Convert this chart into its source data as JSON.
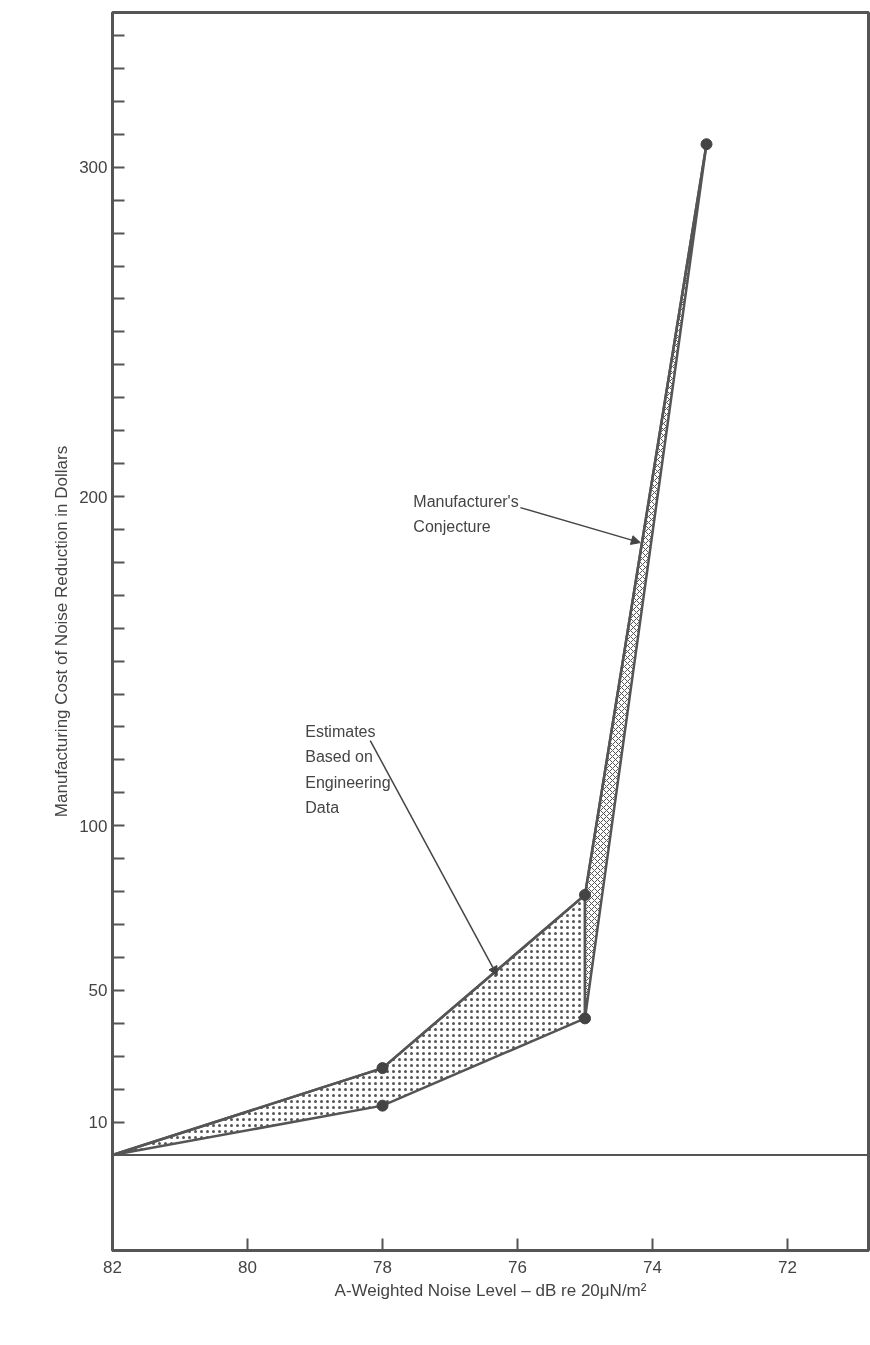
{
  "chart_data": {
    "type": "line",
    "xlabel": "A-Weighted Noise Level – dB re 20μN/m²",
    "ylabel": "Manufacturing Cost of Noise Reduction in Dollars",
    "xlim": [
      82,
      70.8
    ],
    "ylim": [
      -29,
      347
    ],
    "xticks": [
      82,
      80,
      78,
      76,
      74,
      72
    ],
    "yticks": [
      10,
      {
        "value": 20,
        "label": null
      },
      {
        "value": 30,
        "label": null
      },
      {
        "value": 40,
        "label": null
      },
      50,
      {
        "value": 60,
        "label": null
      },
      {
        "value": 70,
        "label": null
      },
      {
        "value": 80,
        "label": null
      },
      {
        "value": 90,
        "label": null
      },
      100,
      {
        "value": 110,
        "label": null
      },
      {
        "value": 120,
        "label": null
      },
      {
        "value": 130,
        "label": null
      },
      {
        "value": 140,
        "label": null
      },
      {
        "value": 150,
        "label": null
      },
      {
        "value": 160,
        "label": null
      },
      {
        "value": 170,
        "label": null
      },
      {
        "value": 180,
        "label": null
      },
      {
        "value": 190,
        "label": null
      },
      200,
      {
        "value": 210,
        "label": null
      },
      {
        "value": 220,
        "label": null
      },
      {
        "value": 230,
        "label": null
      },
      {
        "value": 240,
        "label": null
      },
      {
        "value": 250,
        "label": null
      },
      {
        "value": 260,
        "label": null
      },
      {
        "value": 270,
        "label": null
      },
      {
        "value": 280,
        "label": null
      },
      {
        "value": 290,
        "label": null
      },
      300,
      {
        "value": 310,
        "label": null
      },
      {
        "value": 320,
        "label": null
      },
      {
        "value": 330,
        "label": null
      },
      {
        "value": 340,
        "label": null
      }
    ],
    "grid": false,
    "series": [
      {
        "color": "#555555",
        "x": [
          82,
          78,
          75
        ],
        "values": [
          0,
          26.4,
          79
        ],
        "lower": [
          0,
          15,
          41.5
        ],
        "upper": [
          0,
          26.4,
          79
        ]
      },
      {
        "color": "#555555",
        "x": [
          75,
          73.2
        ],
        "values": [
          79,
          307
        ],
        "lower": [
          41.5,
          307
        ],
        "upper": [
          79,
          307
        ]
      },
      {
        "type": "scatter",
        "marker": "circle",
        "color": "#444444",
        "x": [
          78,
          78,
          75,
          75,
          73.2
        ],
        "values": [
          26.4,
          15,
          79,
          41.5,
          307
        ]
      }
    ],
    "ref_lines": [
      {
        "axis": "y",
        "value": 0,
        "color": "#555555"
      }
    ],
    "annotations": [
      {
        "text": "Manufacturer's\nConjecture",
        "x": 74.18,
        "y": 186
      },
      {
        "text": "Estimates\nBased on\nEngineering\nData",
        "x": 76.3,
        "y": 54.5
      }
    ]
  }
}
